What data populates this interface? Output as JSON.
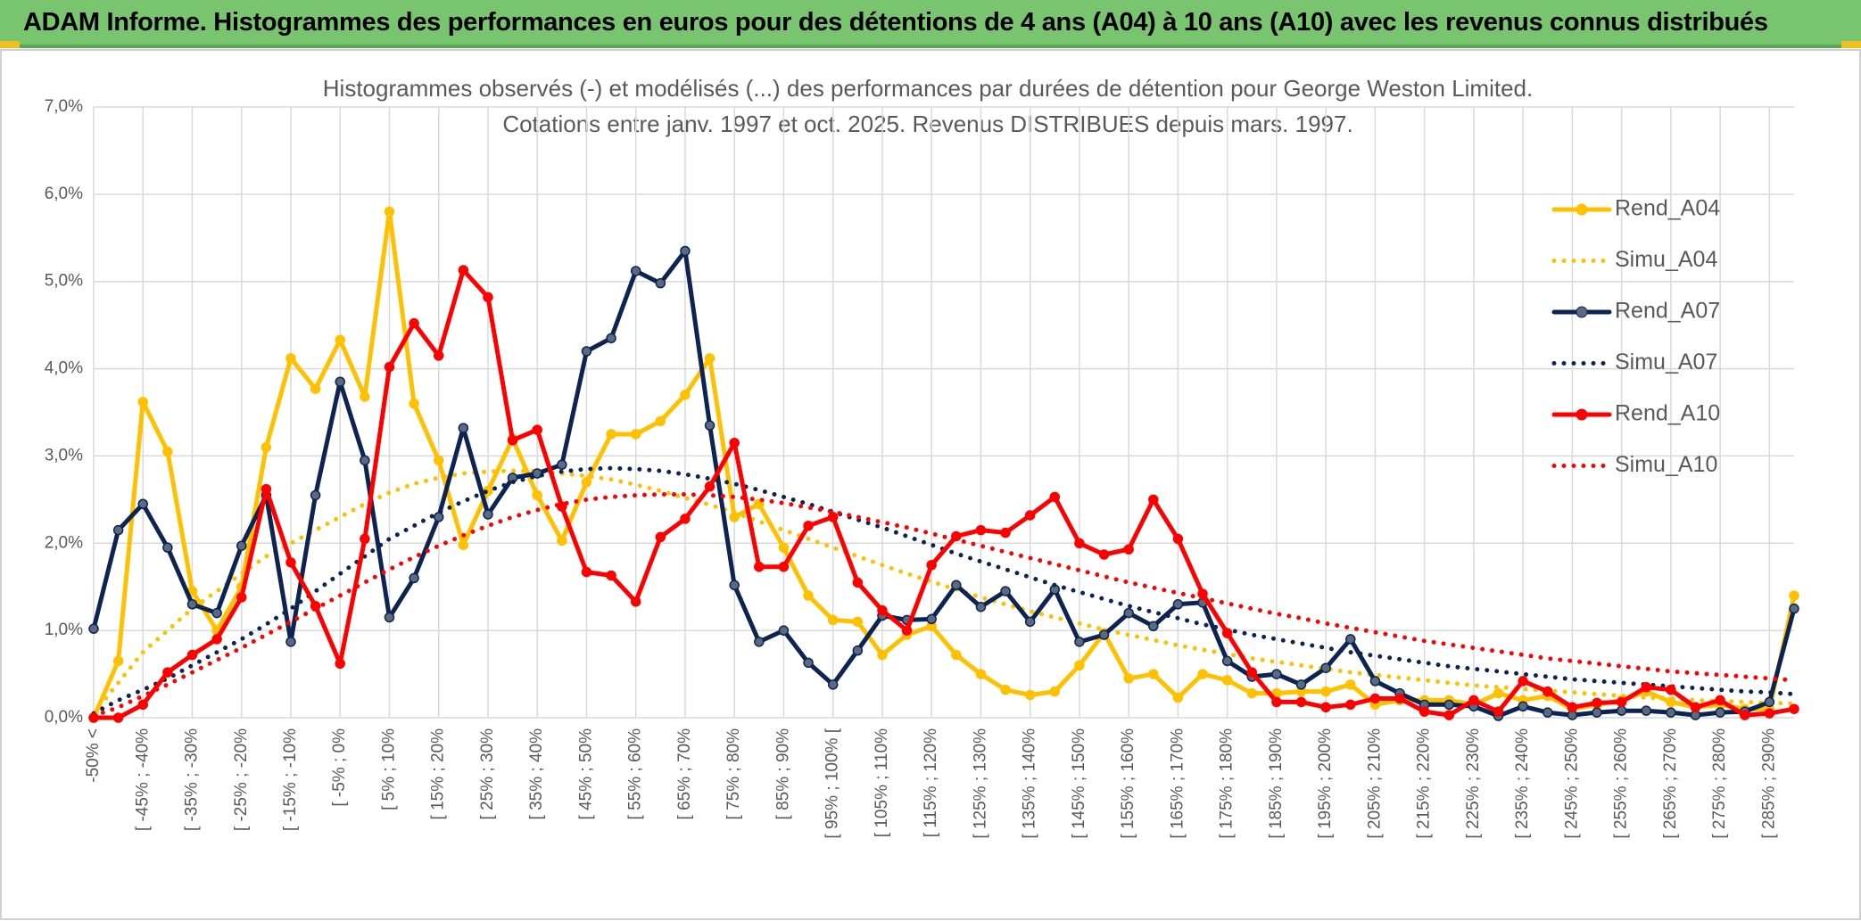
{
  "header": {
    "title": "ADAM Informe. Histogrammes des performances en euros pour des détentions de 4 ans (A04) à 10 ans (A10) avec les revenus connus distribués"
  },
  "chart_data": {
    "type": "line",
    "title": "Histogrammes observés (-) et modélisés (...) des performances par durées de détention pour George Weston Limited.",
    "subtitle": "Cotations entre janv. 1997 et oct. 2025. Revenus DISTRIBUES depuis mars. 1997.",
    "categories": [
      "-50% <",
      null,
      "[ -45% ; -40%",
      null,
      "[ -35% ; -30%",
      null,
      "[ -25% ; -20%",
      null,
      "[ -15% ; -10%",
      null,
      "[ -5% ; 0%",
      null,
      "[ 5% ; 10%",
      null,
      "[ 15% ; 20%",
      null,
      "[ 25% ; 30%",
      null,
      "[ 35% ; 40%",
      null,
      "[ 45% ; 50%",
      null,
      "[ 55% ; 60%",
      null,
      "[ 65% ; 70%",
      null,
      "[ 75% ; 80%",
      null,
      "[ 85% ; 90%",
      null,
      "[ 95% ; 100% [",
      null,
      "[ 105% ; 110%",
      null,
      "[ 115% ; 120%",
      null,
      "[ 125% ; 130%",
      null,
      "[ 135% ; 140%",
      null,
      "[ 145% ; 150%",
      null,
      "[ 155% ; 160%",
      null,
      "[ 165% ; 170%",
      null,
      "[ 175% ; 180%",
      null,
      "[ 185% ; 190%",
      null,
      "[ 195% ; 200%",
      null,
      "[ 205% ; 210%",
      null,
      "[ 215% ; 220%",
      null,
      "[ 225% ; 230%",
      null,
      "[ 235% ; 240%",
      null,
      "[ 245% ; 250%",
      null,
      "[ 255% ; 260%",
      null,
      "[ 265% ; 270%",
      null,
      "[ 275% ; 280%",
      null,
      "[ 285% ; 290%",
      null
    ],
    "series": [
      {
        "name": "Rend_A04",
        "color": "#ffc000",
        "line_style": "solid",
        "markers": true,
        "values": [
          0,
          0.65,
          3.62,
          3.05,
          1.45,
          1.0,
          1.5,
          3.1,
          4.12,
          3.77,
          4.33,
          3.68,
          5.8,
          3.6,
          2.95,
          1.98,
          2.6,
          3.2,
          2.55,
          2.03,
          2.7,
          3.25,
          3.25,
          3.4,
          3.7,
          4.12,
          2.3,
          2.45,
          1.95,
          1.4,
          1.12,
          1.1,
          0.72,
          0.95,
          1.05,
          0.72,
          0.5,
          0.32,
          0.26,
          0.3,
          0.6,
          0.97,
          0.45,
          0.5,
          0.23,
          0.5,
          0.43,
          0.28,
          0.28,
          0.3,
          0.3,
          0.38,
          0.15,
          0.2,
          0.2,
          0.2,
          0.15,
          0.28,
          0.2,
          0.25,
          0.1,
          0.15,
          0.2,
          0.3,
          0.18,
          0.12,
          0.15,
          0.1,
          0.1,
          1.4
        ]
      },
      {
        "name": "Simu_A04",
        "color": "#ffc000",
        "line_style": "dotted",
        "markers": false,
        "values": [
          0.05,
          0.4,
          0.75,
          1.0,
          1.25,
          1.45,
          1.65,
          1.85,
          2.0,
          2.15,
          2.3,
          2.45,
          2.58,
          2.68,
          2.75,
          2.8,
          2.82,
          2.83,
          2.83,
          2.8,
          2.77,
          2.73,
          2.67,
          2.6,
          2.52,
          2.44,
          2.35,
          2.25,
          2.15,
          2.05,
          1.95,
          1.85,
          1.75,
          1.65,
          1.56,
          1.47,
          1.38,
          1.3,
          1.22,
          1.15,
          1.08,
          1.01,
          0.95,
          0.89,
          0.83,
          0.78,
          0.73,
          0.68,
          0.64,
          0.6,
          0.56,
          0.52,
          0.49,
          0.46,
          0.43,
          0.4,
          0.37,
          0.35,
          0.33,
          0.31,
          0.29,
          0.27,
          0.25,
          0.23,
          0.22,
          0.2,
          0.19,
          0.18,
          0.17,
          0.16
        ]
      },
      {
        "name": "Rend_A07",
        "color": "#0d2453",
        "line_style": "solid",
        "markers": true,
        "values": [
          1.02,
          2.15,
          2.45,
          1.95,
          1.3,
          1.2,
          1.97,
          2.55,
          0.87,
          2.55,
          3.85,
          2.95,
          1.15,
          1.6,
          2.3,
          3.32,
          2.33,
          2.75,
          2.8,
          2.9,
          4.2,
          4.35,
          5.12,
          4.98,
          5.35,
          3.35,
          1.52,
          0.87,
          1.0,
          0.63,
          0.38,
          0.77,
          1.17,
          1.12,
          1.13,
          1.52,
          1.27,
          1.45,
          1.1,
          1.47,
          0.87,
          0.95,
          1.2,
          1.05,
          1.3,
          1.32,
          0.65,
          0.47,
          0.5,
          0.38,
          0.57,
          0.9,
          0.42,
          0.28,
          0.15,
          0.15,
          0.13,
          0.02,
          0.13,
          0.06,
          0.03,
          0.06,
          0.08,
          0.08,
          0.06,
          0.03,
          0.06,
          0.07,
          0.18,
          1.25
        ]
      },
      {
        "name": "Simu_A07",
        "color": "#0d2453",
        "line_style": "dotted",
        "markers": false,
        "values": [
          0.05,
          0.2,
          0.32,
          0.45,
          0.6,
          0.75,
          0.9,
          1.07,
          1.25,
          1.45,
          1.65,
          1.85,
          2.05,
          2.2,
          2.35,
          2.48,
          2.6,
          2.7,
          2.77,
          2.82,
          2.85,
          2.86,
          2.85,
          2.83,
          2.79,
          2.74,
          2.68,
          2.61,
          2.53,
          2.45,
          2.36,
          2.27,
          2.18,
          2.08,
          1.98,
          1.88,
          1.79,
          1.7,
          1.61,
          1.52,
          1.44,
          1.36,
          1.28,
          1.21,
          1.14,
          1.07,
          1.01,
          0.95,
          0.9,
          0.85,
          0.8,
          0.75,
          0.71,
          0.67,
          0.63,
          0.59,
          0.56,
          0.53,
          0.5,
          0.47,
          0.44,
          0.42,
          0.4,
          0.38,
          0.36,
          0.34,
          0.32,
          0.3,
          0.29,
          0.27
        ]
      },
      {
        "name": "Rend_A10",
        "color": "#ff0000",
        "line_style": "solid",
        "markers": true,
        "values": [
          0,
          0,
          0.15,
          0.52,
          0.72,
          0.9,
          1.38,
          2.62,
          1.78,
          1.28,
          0.62,
          2.05,
          4.02,
          4.52,
          4.15,
          5.13,
          4.82,
          3.18,
          3.3,
          2.42,
          1.67,
          1.63,
          1.33,
          2.07,
          2.28,
          2.65,
          3.15,
          1.73,
          1.73,
          2.2,
          2.3,
          1.55,
          1.23,
          1.0,
          1.75,
          2.08,
          2.15,
          2.12,
          2.32,
          2.53,
          2.0,
          1.87,
          1.93,
          2.5,
          2.05,
          1.42,
          0.97,
          0.52,
          0.18,
          0.18,
          0.12,
          0.15,
          0.22,
          0.22,
          0.07,
          0.03,
          0.2,
          0.07,
          0.42,
          0.3,
          0.12,
          0.17,
          0.18,
          0.35,
          0.32,
          0.12,
          0.2,
          0.03,
          0.05,
          0.1
        ]
      },
      {
        "name": "Simu_A10",
        "color": "#ff0000",
        "line_style": "dotted",
        "markers": false,
        "values": [
          0.02,
          0.12,
          0.25,
          0.38,
          0.52,
          0.66,
          0.8,
          0.95,
          1.1,
          1.25,
          1.4,
          1.55,
          1.7,
          1.84,
          1.97,
          2.09,
          2.2,
          2.3,
          2.38,
          2.45,
          2.5,
          2.53,
          2.55,
          2.56,
          2.56,
          2.55,
          2.53,
          2.5,
          2.46,
          2.41,
          2.36,
          2.3,
          2.24,
          2.18,
          2.11,
          2.04,
          1.97,
          1.9,
          1.83,
          1.76,
          1.69,
          1.62,
          1.55,
          1.49,
          1.43,
          1.37,
          1.31,
          1.25,
          1.19,
          1.14,
          1.08,
          1.03,
          0.98,
          0.93,
          0.88,
          0.84,
          0.8,
          0.76,
          0.72,
          0.68,
          0.65,
          0.62,
          0.59,
          0.56,
          0.53,
          0.51,
          0.49,
          0.47,
          0.45,
          0.43
        ]
      }
    ],
    "ylim": [
      0,
      7
    ],
    "yticks": [
      {
        "value": 0,
        "label": "0,0%"
      },
      {
        "value": 1,
        "label": "1,0%"
      },
      {
        "value": 2,
        "label": "2,0%"
      },
      {
        "value": 3,
        "label": "3,0%"
      },
      {
        "value": 4,
        "label": "4,0%"
      },
      {
        "value": 5,
        "label": "5,0%"
      },
      {
        "value": 6,
        "label": "6,0%"
      },
      {
        "value": 7,
        "label": "7,0%"
      }
    ],
    "grid": true,
    "legend": "right"
  }
}
